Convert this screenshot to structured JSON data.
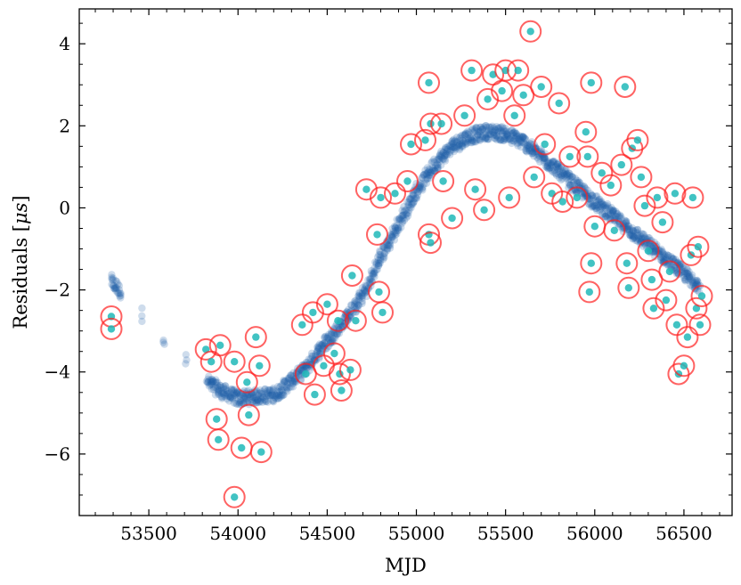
{
  "chart_data": {
    "type": "scatter",
    "title": "",
    "xlabel": "MJD",
    "ylabel": "Residuals [",
    "ylabel_symbol": "μs",
    "ylabel_close": "]",
    "xlim": [
      53110,
      56770
    ],
    "ylim": [
      -7.5,
      4.85
    ],
    "x_ticks": [
      53500,
      54000,
      54500,
      55000,
      55500,
      56000,
      56500
    ],
    "x_tick_labels": [
      "53500",
      "54000",
      "54500",
      "55000",
      "55500",
      "56000",
      "56500"
    ],
    "y_ticks": [
      -6,
      -4,
      -2,
      0,
      2,
      4
    ],
    "y_tick_labels": [
      "−6",
      "−4",
      "−2",
      "0",
      "2",
      "4"
    ],
    "grid": false,
    "series": [
      {
        "name": "residuals",
        "marker": "filled circle, translucent",
        "color": "#1f5fa8",
        "trend_points": [
          [
            53290,
            -1.8
          ],
          [
            53340,
            -2.05
          ],
          [
            53830,
            -4.25
          ],
          [
            53900,
            -4.45
          ],
          [
            54000,
            -4.65
          ],
          [
            54100,
            -4.6
          ],
          [
            54210,
            -4.55
          ],
          [
            54370,
            -3.95
          ],
          [
            54450,
            -3.5
          ],
          [
            54550,
            -3.0
          ],
          [
            54640,
            -2.5
          ],
          [
            54720,
            -2.0
          ],
          [
            54800,
            -1.2
          ],
          [
            54900,
            -0.4
          ],
          [
            55000,
            0.4
          ],
          [
            55100,
            1.05
          ],
          [
            55200,
            1.5
          ],
          [
            55300,
            1.75
          ],
          [
            55400,
            1.85
          ],
          [
            55500,
            1.8
          ],
          [
            55600,
            1.6
          ],
          [
            55700,
            1.25
          ],
          [
            55800,
            0.9
          ],
          [
            55900,
            0.5
          ],
          [
            56000,
            0.15
          ],
          [
            56100,
            -0.2
          ],
          [
            56200,
            -0.55
          ],
          [
            56300,
            -0.9
          ],
          [
            56400,
            -1.25
          ],
          [
            56500,
            -1.6
          ],
          [
            56590,
            -1.9
          ]
        ]
      },
      {
        "name": "outliers",
        "marker": "teal dot with red open ring",
        "color": "#20b8b8",
        "ring_color": "#ff2020",
        "points": [
          [
            53290,
            -2.65
          ],
          [
            53290,
            -2.95
          ],
          [
            53820,
            -3.45
          ],
          [
            53850,
            -3.75
          ],
          [
            53900,
            -3.35
          ],
          [
            53880,
            -5.15
          ],
          [
            53890,
            -5.65
          ],
          [
            53980,
            -3.75
          ],
          [
            54050,
            -4.25
          ],
          [
            54100,
            -3.15
          ],
          [
            54120,
            -3.85
          ],
          [
            54060,
            -5.05
          ],
          [
            53980,
            -7.05
          ],
          [
            54020,
            -5.85
          ],
          [
            54130,
            -5.95
          ],
          [
            54360,
            -2.85
          ],
          [
            54420,
            -2.55
          ],
          [
            54500,
            -2.35
          ],
          [
            54560,
            -2.75
          ],
          [
            54640,
            -1.65
          ],
          [
            54380,
            -4.05
          ],
          [
            54430,
            -4.55
          ],
          [
            54570,
            -4.05
          ],
          [
            54580,
            -4.45
          ],
          [
            54630,
            -3.95
          ],
          [
            54480,
            -3.85
          ],
          [
            54540,
            -3.55
          ],
          [
            54660,
            -2.75
          ],
          [
            54720,
            0.45
          ],
          [
            54780,
            -0.65
          ],
          [
            54800,
            0.25
          ],
          [
            54790,
            -2.05
          ],
          [
            54810,
            -2.55
          ],
          [
            54880,
            0.35
          ],
          [
            54950,
            0.65
          ],
          [
            54970,
            1.55
          ],
          [
            55050,
            1.65
          ],
          [
            55070,
            3.05
          ],
          [
            55080,
            2.05
          ],
          [
            55140,
            2.05
          ],
          [
            55150,
            0.65
          ],
          [
            55070,
            -0.65
          ],
          [
            55080,
            -0.85
          ],
          [
            55200,
            -0.25
          ],
          [
            55270,
            2.25
          ],
          [
            55310,
            3.35
          ],
          [
            55330,
            0.45
          ],
          [
            55380,
            -0.05
          ],
          [
            55400,
            2.65
          ],
          [
            55430,
            3.25
          ],
          [
            55480,
            2.85
          ],
          [
            55500,
            3.35
          ],
          [
            55520,
            0.25
          ],
          [
            55550,
            2.25
          ],
          [
            55570,
            3.35
          ],
          [
            55600,
            2.75
          ],
          [
            55640,
            4.3
          ],
          [
            55660,
            0.75
          ],
          [
            55700,
            2.95
          ],
          [
            55720,
            1.55
          ],
          [
            55760,
            0.35
          ],
          [
            55800,
            2.55
          ],
          [
            55820,
            0.15
          ],
          [
            55860,
            1.25
          ],
          [
            55900,
            0.25
          ],
          [
            55950,
            1.85
          ],
          [
            55960,
            1.25
          ],
          [
            55980,
            3.05
          ],
          [
            56000,
            -0.45
          ],
          [
            55980,
            -1.35
          ],
          [
            55970,
            -2.05
          ],
          [
            56040,
            0.85
          ],
          [
            56090,
            0.55
          ],
          [
            56110,
            -0.55
          ],
          [
            56150,
            1.05
          ],
          [
            56170,
            2.95
          ],
          [
            56180,
            -1.35
          ],
          [
            56190,
            -1.95
          ],
          [
            56210,
            1.45
          ],
          [
            56240,
            1.65
          ],
          [
            56260,
            0.75
          ],
          [
            56280,
            0.05
          ],
          [
            56300,
            -1.05
          ],
          [
            56320,
            -1.75
          ],
          [
            56330,
            -2.45
          ],
          [
            56350,
            0.25
          ],
          [
            56380,
            -0.35
          ],
          [
            56400,
            -2.25
          ],
          [
            56420,
            -1.55
          ],
          [
            56450,
            0.35
          ],
          [
            56460,
            -2.85
          ],
          [
            56470,
            -4.05
          ],
          [
            56500,
            -3.85
          ],
          [
            56520,
            -3.15
          ],
          [
            56540,
            -1.15
          ],
          [
            56550,
            0.25
          ],
          [
            56570,
            -2.45
          ],
          [
            56580,
            -0.95
          ],
          [
            56590,
            -2.85
          ],
          [
            56600,
            -2.15
          ]
        ]
      }
    ]
  }
}
